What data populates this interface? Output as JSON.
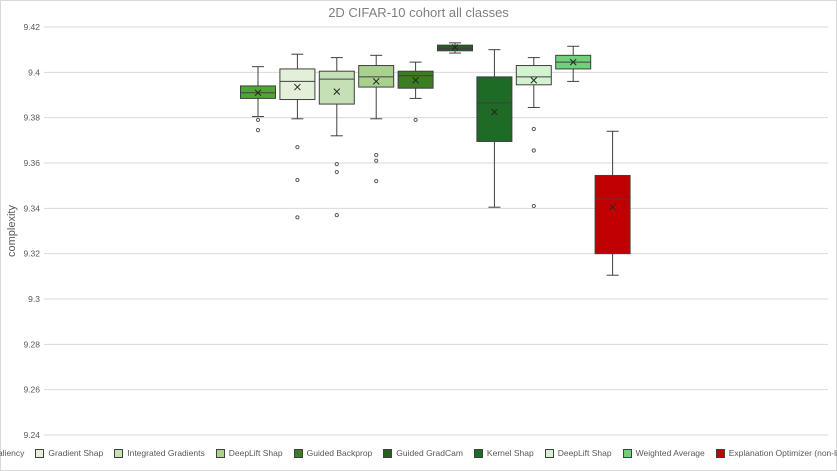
{
  "chart_data": {
    "type": "box",
    "title": "2D CIFAR-10 cohort all classes",
    "ylabel": "complexity",
    "xlabel": "",
    "ylim": [
      9.24,
      9.42
    ],
    "yticks": [
      "9.42",
      "9.4",
      "9.38",
      "9.36",
      "9.34",
      "9.32",
      "9.3",
      "9.28",
      "9.26",
      "9.24"
    ],
    "grid": true,
    "legend_position": "bottom",
    "series": [
      {
        "name": "Saliency",
        "color": "#4ea72e",
        "min": 9.3805,
        "q1": 9.3885,
        "median": 9.391,
        "q3": 9.394,
        "max": 9.4025,
        "mean": 9.391,
        "outliers": [
          9.379,
          9.3745
        ]
      },
      {
        "name": "Gradient Shap",
        "color": "#e2f0d9",
        "min": 9.3795,
        "q1": 9.388,
        "median": 9.396,
        "q3": 9.4015,
        "max": 9.408,
        "mean": 9.3935,
        "outliers": [
          9.367,
          9.3525,
          9.336
        ]
      },
      {
        "name": "Integrated Gradients",
        "color": "#c5e0b4",
        "min": 9.372,
        "q1": 9.386,
        "median": 9.397,
        "q3": 9.4005,
        "max": 9.4065,
        "mean": 9.3915,
        "outliers": [
          9.3595,
          9.356,
          9.337
        ]
      },
      {
        "name": "DeepLift Shap",
        "color": "#a9d18e",
        "min": 9.3795,
        "q1": 9.3935,
        "median": 9.398,
        "q3": 9.403,
        "max": 9.4075,
        "mean": 9.396,
        "outliers": [
          9.3635,
          9.361,
          9.352
        ]
      },
      {
        "name": "Guided Backprop",
        "color": "#3a7d22",
        "min": 9.3885,
        "q1": 9.393,
        "median": 9.3985,
        "q3": 9.4005,
        "max": 9.4045,
        "mean": 9.3965,
        "outliers": [
          9.379
        ]
      },
      {
        "name": "Guided GradCam",
        "color": "#255e1f",
        "min": 9.4085,
        "q1": 9.4095,
        "median": 9.4105,
        "q3": 9.412,
        "max": 9.413,
        "mean": 9.411,
        "outliers": []
      },
      {
        "name": "Kernel Shap",
        "color": "#1e6b26",
        "min": 9.3405,
        "q1": 9.3695,
        "median": 9.3865,
        "q3": 9.398,
        "max": 9.41,
        "mean": 9.3825,
        "outliers": []
      },
      {
        "name": "DeepLift Shap",
        "color": "#d3f3d0",
        "min": 9.3845,
        "q1": 9.3945,
        "median": 9.398,
        "q3": 9.403,
        "max": 9.4065,
        "mean": 9.3965,
        "outliers": [
          9.375,
          9.3655,
          9.341
        ]
      },
      {
        "name": "Weighted Average",
        "color": "#6fd17a",
        "min": 9.396,
        "q1": 9.4015,
        "median": 9.4045,
        "q3": 9.4075,
        "max": 9.4115,
        "mean": 9.4045,
        "outliers": []
      },
      {
        "name": "Explanation Optimizer (non-linear)",
        "color": "#c00000",
        "min": 9.3105,
        "q1": 9.32,
        "median": 9.344,
        "q3": 9.3545,
        "max": 9.374,
        "mean": 9.3405,
        "outliers": []
      }
    ]
  }
}
